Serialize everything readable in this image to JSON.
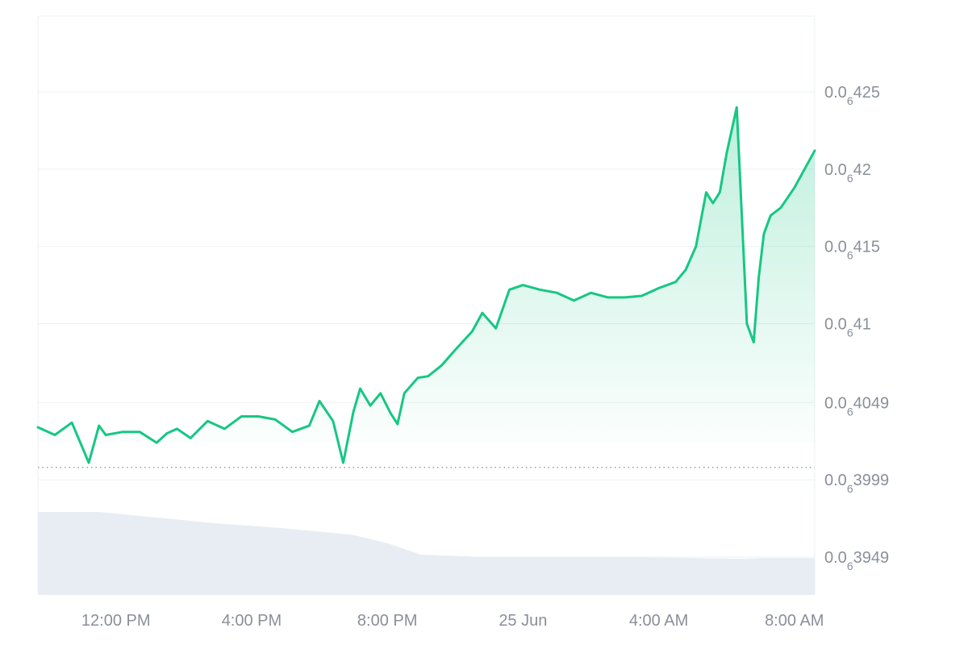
{
  "chart_data": {
    "type": "area",
    "colors": {
      "line": "#16c784",
      "fill_top": "#16c784",
      "volume": "#e8edf4",
      "grid": "#eef0f3",
      "axis_text": "#8a8f99",
      "baseline": "#9aa0a8"
    },
    "y_axis": {
      "position": "right",
      "range": [
        3.925e-07,
        4.299e-07
      ],
      "ticks": [
        {
          "value": 4.25e-07,
          "prefix": "0.0",
          "sub": "6",
          "digits": "425"
        },
        {
          "value": 4.2e-07,
          "prefix": "0.0",
          "sub": "6",
          "digits": "42"
        },
        {
          "value": 4.15e-07,
          "prefix": "0.0",
          "sub": "6",
          "digits": "415"
        },
        {
          "value": 4.1e-07,
          "prefix": "0.0",
          "sub": "6",
          "digits": "41"
        },
        {
          "value": 4.049e-07,
          "prefix": "0.0",
          "sub": "6",
          "digits": "4049"
        },
        {
          "value": 3.999e-07,
          "prefix": "0.0",
          "sub": "6",
          "digits": "3999"
        },
        {
          "value": 3.949e-07,
          "prefix": "0.0",
          "sub": "6",
          "digits": "3949"
        }
      ]
    },
    "x_axis": {
      "range_hours": [
        9.7,
        32.6
      ],
      "ticks": [
        {
          "label": "12:00 PM",
          "hour": 12
        },
        {
          "label": "4:00 PM",
          "hour": 16
        },
        {
          "label": "8:00 PM",
          "hour": 20
        },
        {
          "label": "25 Jun",
          "hour": 24
        },
        {
          "label": "4:00 AM",
          "hour": 28
        },
        {
          "label": "8:00 AM",
          "hour": 32
        }
      ]
    },
    "baseline_value": 4.007e-07,
    "x": [
      9.7,
      10.2,
      10.7,
      11.2,
      11.5,
      11.7,
      12.2,
      12.7,
      13.2,
      13.5,
      13.8,
      14.2,
      14.7,
      15.2,
      15.7,
      16.2,
      16.7,
      17.2,
      17.7,
      18.0,
      18.4,
      18.7,
      19.0,
      19.2,
      19.5,
      19.8,
      20.1,
      20.3,
      20.5,
      20.9,
      21.2,
      21.6,
      22.0,
      22.5,
      22.8,
      23.2,
      23.6,
      24.0,
      24.5,
      25.0,
      25.5,
      26.0,
      26.5,
      27.0,
      27.5,
      28.0,
      28.5,
      28.8,
      29.1,
      29.4,
      29.6,
      29.8,
      30.0,
      30.3,
      30.6,
      30.8,
      30.95,
      31.1,
      31.3,
      31.6,
      32.0,
      32.3,
      32.6
    ],
    "values": [
      4.033e-07,
      4.028e-07,
      4.036e-07,
      4.01e-07,
      4.034e-07,
      4.028e-07,
      4.03e-07,
      4.03e-07,
      4.023e-07,
      4.029e-07,
      4.032e-07,
      4.026e-07,
      4.037e-07,
      4.032e-07,
      4.04e-07,
      4.04e-07,
      4.038e-07,
      4.03e-07,
      4.034e-07,
      4.05e-07,
      4.037e-07,
      4.01e-07,
      4.043e-07,
      4.058e-07,
      4.047e-07,
      4.055e-07,
      4.042e-07,
      4.035e-07,
      4.055e-07,
      4.065e-07,
      4.066e-07,
      4.073e-07,
      4.083e-07,
      4.095e-07,
      4.107e-07,
      4.097e-07,
      4.122e-07,
      4.125e-07,
      4.122e-07,
      4.12e-07,
      4.115e-07,
      4.12e-07,
      4.117e-07,
      4.117e-07,
      4.118e-07,
      4.123e-07,
      4.127e-07,
      4.135e-07,
      4.15e-07,
      4.185e-07,
      4.178e-07,
      4.185e-07,
      4.21e-07,
      4.24e-07,
      4.1e-07,
      4.088e-07,
      4.13e-07,
      4.158e-07,
      4.17e-07,
      4.175e-07,
      4.188e-07,
      4.2e-07,
      4.212e-07
    ],
    "volume": {
      "x": [
        9.7,
        11.5,
        13.0,
        15.0,
        17.0,
        19.0,
        20.0,
        21.0,
        23.0,
        25.0,
        27.0,
        29.0,
        30.5,
        31.0,
        32.3,
        32.6
      ],
      "relative": [
        1.0,
        1.0,
        0.94,
        0.86,
        0.8,
        0.72,
        0.62,
        0.48,
        0.45,
        0.45,
        0.45,
        0.44,
        0.43,
        0.44,
        0.44,
        0.44
      ]
    }
  }
}
